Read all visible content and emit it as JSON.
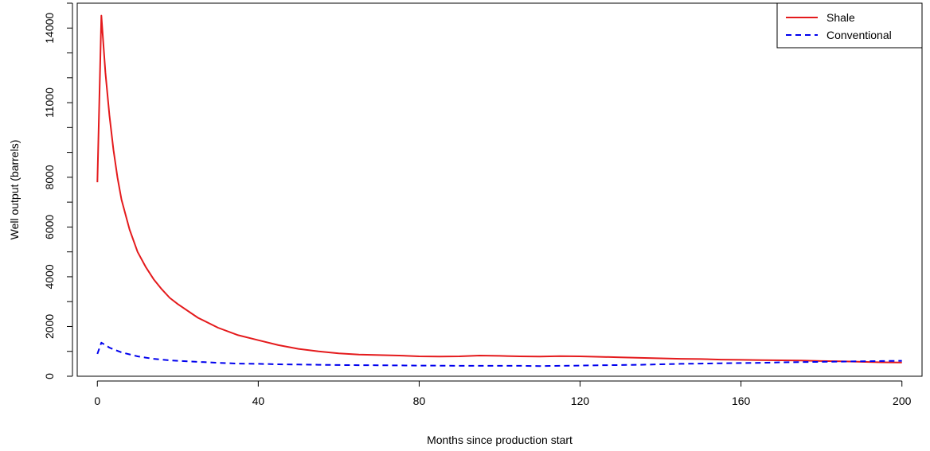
{
  "chart_data": {
    "type": "line",
    "xlabel": "Months since production start",
    "ylabel": "Well output (barrels)",
    "xlim": [
      -5,
      205
    ],
    "ylim": [
      0,
      15000
    ],
    "x_ticks": [
      0,
      40,
      80,
      120,
      160,
      200
    ],
    "y_ticks": [
      0,
      1000,
      2000,
      3000,
      4000,
      5000,
      6000,
      7000,
      8000,
      9000,
      10000,
      11000,
      12000,
      13000,
      14000,
      15000
    ],
    "y_tick_labels": [
      {
        "value": 0,
        "label": "0"
      },
      {
        "value": 2000,
        "label": "2000"
      },
      {
        "value": 4000,
        "label": "4000"
      },
      {
        "value": 6000,
        "label": "6000"
      },
      {
        "value": 8000,
        "label": "8000"
      },
      {
        "value": 11000,
        "label": "11000"
      },
      {
        "value": 14000,
        "label": "14000"
      }
    ],
    "grid": false,
    "legend_position": "top-right",
    "series": [
      {
        "name": "Shale",
        "color": "#e41a1c",
        "dash": "solid",
        "x": [
          0,
          1,
          2,
          3,
          4,
          5,
          6,
          8,
          10,
          12,
          14,
          16,
          18,
          20,
          25,
          30,
          35,
          40,
          45,
          50,
          55,
          60,
          65,
          70,
          75,
          80,
          85,
          90,
          95,
          100,
          105,
          110,
          115,
          120,
          125,
          130,
          135,
          140,
          145,
          150,
          155,
          160,
          165,
          170,
          175,
          180,
          185,
          190,
          195,
          200
        ],
        "values": [
          7800,
          14500,
          12200,
          10500,
          9100,
          8000,
          7100,
          5900,
          5000,
          4400,
          3900,
          3500,
          3150,
          2900,
          2350,
          1950,
          1650,
          1450,
          1250,
          1100,
          1000,
          920,
          870,
          850,
          830,
          800,
          790,
          800,
          830,
          820,
          800,
          790,
          810,
          800,
          780,
          760,
          740,
          720,
          700,
          690,
          670,
          660,
          650,
          640,
          630,
          610,
          600,
          580,
          560,
          550
        ]
      },
      {
        "name": "Conventional",
        "color": "#0000ee",
        "dash": "dashed",
        "x": [
          0,
          1,
          2,
          3,
          4,
          5,
          6,
          8,
          10,
          12,
          14,
          16,
          18,
          20,
          25,
          30,
          35,
          40,
          45,
          50,
          55,
          60,
          65,
          70,
          75,
          80,
          85,
          90,
          95,
          100,
          105,
          110,
          115,
          120,
          125,
          130,
          135,
          140,
          145,
          150,
          155,
          160,
          165,
          170,
          175,
          180,
          185,
          190,
          195,
          200
        ],
        "values": [
          900,
          1350,
          1250,
          1150,
          1080,
          1020,
          960,
          880,
          800,
          750,
          700,
          670,
          640,
          620,
          580,
          540,
          510,
          500,
          480,
          470,
          460,
          450,
          445,
          440,
          435,
          430,
          425,
          420,
          420,
          420,
          420,
          410,
          420,
          430,
          440,
          450,
          460,
          480,
          500,
          510,
          520,
          530,
          540,
          560,
          570,
          580,
          590,
          600,
          610,
          620
        ]
      }
    ]
  }
}
